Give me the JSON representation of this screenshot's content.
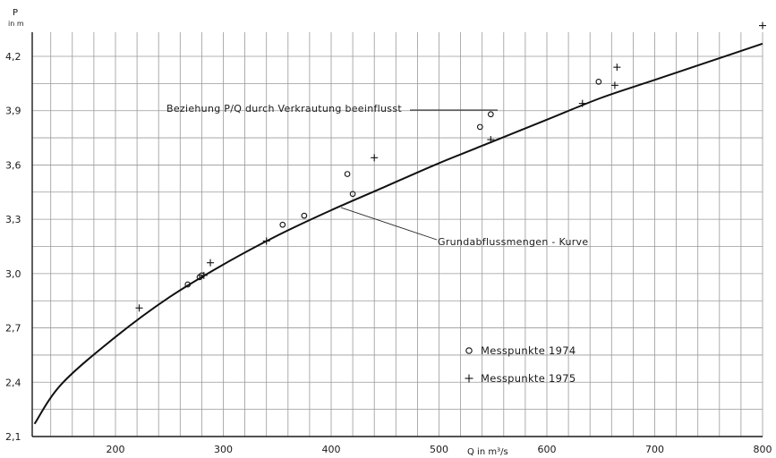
{
  "chart_data": {
    "type": "scatter",
    "ylabel": "P",
    "ylabel_unit": "in m",
    "xlabel": "Q in m³/s",
    "xlim": [
      120,
      800
    ],
    "ylim": [
      2.1,
      4.35
    ],
    "x_ticks": [
      "200",
      "300",
      "400",
      "500",
      "600",
      "700",
      "800"
    ],
    "y_ticks": [
      "2,1",
      "2,4",
      "2,7",
      "3,0",
      "3,3",
      "3,6",
      "3,9",
      "4,2"
    ],
    "grid": true,
    "curve": {
      "name": "Grundabflussmengen - Kurve",
      "points": [
        [
          125,
          2.17
        ],
        [
          150,
          2.39
        ],
        [
          200,
          2.65
        ],
        [
          250,
          2.87
        ],
        [
          300,
          3.05
        ],
        [
          350,
          3.21
        ],
        [
          400,
          3.35
        ],
        [
          450,
          3.48
        ],
        [
          500,
          3.61
        ],
        [
          550,
          3.73
        ],
        [
          600,
          3.85
        ],
        [
          650,
          3.97
        ],
        [
          700,
          4.07
        ],
        [
          750,
          4.17
        ],
        [
          800,
          4.27
        ]
      ]
    },
    "series": [
      {
        "name": "Messpunkte 1974",
        "marker": "circle",
        "points": [
          [
            267,
            2.94
          ],
          [
            278,
            2.98
          ],
          [
            280,
            2.99
          ],
          [
            355,
            3.27
          ],
          [
            375,
            3.32
          ],
          [
            415,
            3.55
          ],
          [
            420,
            3.44
          ],
          [
            538,
            3.81
          ],
          [
            548,
            3.88
          ],
          [
            648,
            4.06
          ]
        ]
      },
      {
        "name": "Messpunkte 1975",
        "marker": "cross",
        "points": [
          [
            222,
            2.81
          ],
          [
            282,
            2.99
          ],
          [
            288,
            3.06
          ],
          [
            340,
            3.18
          ],
          [
            440,
            3.64
          ],
          [
            548,
            3.74
          ],
          [
            633,
            3.94
          ],
          [
            663,
            4.04
          ],
          [
            665,
            4.14
          ],
          [
            800,
            4.37
          ]
        ]
      }
    ],
    "annotations": [
      {
        "text": "Beziehung P/Q durch Verkrautung beeinflusst"
      },
      {
        "text": "Grundabflussmengen - Kurve"
      }
    ],
    "legend_position": "bottom-right"
  }
}
